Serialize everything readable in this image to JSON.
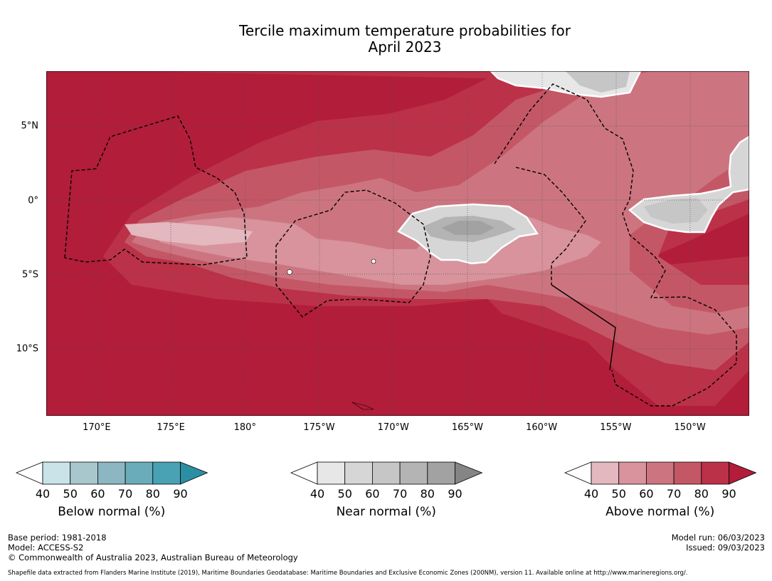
{
  "title_line1": "Tercile maximum temperature probabilities for",
  "title_line2": "April 2023",
  "lon_ticks": [
    {
      "value": 170,
      "label": "170°E"
    },
    {
      "value": 175,
      "label": "175°E"
    },
    {
      "value": 180,
      "label": "180°"
    },
    {
      "value": 185,
      "label": "175°W"
    },
    {
      "value": 190,
      "label": "170°W"
    },
    {
      "value": 195,
      "label": "165°W"
    },
    {
      "value": 200,
      "label": "160°W"
    },
    {
      "value": 205,
      "label": "155°W"
    },
    {
      "value": 210,
      "label": "150°W"
    }
  ],
  "lat_ticks": [
    {
      "value": 5,
      "label": "5°N"
    },
    {
      "value": 0,
      "label": "0°"
    },
    {
      "value": -5,
      "label": "5°S"
    },
    {
      "value": -10,
      "label": "10°S"
    }
  ],
  "map_extent": {
    "lon": [
      166.6,
      214.0
    ],
    "lat": [
      -14.5,
      8.7
    ]
  },
  "colorbars": [
    {
      "title": "Below normal (%)",
      "ticks": [
        "40",
        "50",
        "60",
        "70",
        "80",
        "90"
      ],
      "colors": [
        "#c9e3e9",
        "#a7c7cd",
        "#8cb6c1",
        "#6aacba",
        "#48a2b3",
        "#2b8fa3"
      ]
    },
    {
      "title": "Near normal (%)",
      "ticks": [
        "40",
        "50",
        "60",
        "70",
        "80",
        "90"
      ],
      "colors": [
        "#e7e7e7",
        "#d6d6d6",
        "#c6c6c6",
        "#b4b4b4",
        "#a2a2a2",
        "#858585"
      ]
    },
    {
      "title": "Above normal (%)",
      "ticks": [
        "40",
        "50",
        "60",
        "70",
        "80",
        "90"
      ],
      "colors": [
        "#e3b8bf",
        "#d8939c",
        "#cc7580",
        "#c45766",
        "#bb3148",
        "#b21d3a"
      ]
    }
  ],
  "footer": {
    "base_period": "Base period: 1981-2018",
    "model": "Model: ACCESS-S2",
    "copyright": "© Commonwealth of Australia 2023, Australian Bureau of Meteorology",
    "model_run": "Model run: 06/03/2023",
    "issued": "Issued: 09/03/2023",
    "shapefile": "Shapefile data extracted from Flanders Marine Institute (2019), Maritime Boundaries Geodatabase: Maritime Boundaries and Exclusive Economic Zones (200NM), version 11. Available online at http://www.marineregions.org/."
  }
}
